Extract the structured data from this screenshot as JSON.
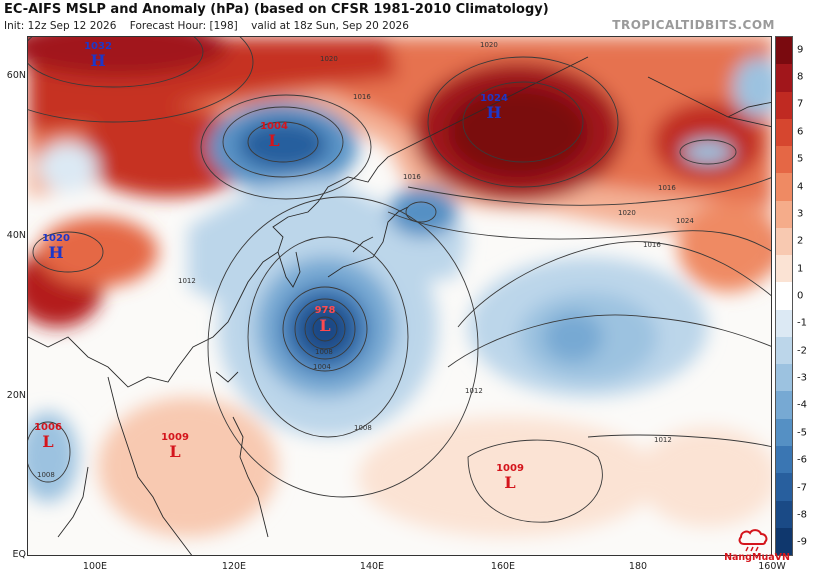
{
  "header": {
    "title": "EC-AIFS MSLP and Anomaly (hPa) (based on CFSR 1981-2010 Climatology)",
    "init": "Init: 12z Sep 12 2026",
    "forecast_hour": "Forecast Hour: [198]",
    "valid": "valid at 18z Sun, Sep 20 2026",
    "brand": "TROPICALTIDBITS.COM"
  },
  "axes": {
    "lat_labels": [
      "60N",
      "40N",
      "20N",
      "EQ"
    ],
    "lon_labels": [
      "100E",
      "120E",
      "140E",
      "160E",
      "180",
      "160W"
    ]
  },
  "colorbar": {
    "labels": [
      "9",
      "8",
      "7",
      "6",
      "5",
      "4",
      "3",
      "2",
      "1",
      "0",
      "-1",
      "-2",
      "-3",
      "-4",
      "-5",
      "-6",
      "-7",
      "-8",
      "-9"
    ],
    "colors": [
      "#7a0a0f",
      "#a1161b",
      "#c02a22",
      "#d6462f",
      "#e56745",
      "#ef8a63",
      "#f5ac8a",
      "#f8c9b1",
      "#fbe3d4",
      "#ffffff",
      "#dce9f4",
      "#bcd6ea",
      "#9cc2e0",
      "#77a9d3",
      "#5590c4",
      "#3a76b3",
      "#285f9e",
      "#1a4a86",
      "#0f376d"
    ]
  },
  "systems": [
    {
      "type": "H",
      "value": "1032",
      "color": "#1d37c9"
    },
    {
      "type": "H",
      "value": "1024",
      "color": "#1d37c9"
    },
    {
      "type": "H",
      "value": "1020",
      "color": "#1d37c9"
    },
    {
      "type": "L",
      "value": "1004",
      "color": "#d4151c"
    },
    {
      "type": "L",
      "value": "978",
      "color": "#d4151c"
    },
    {
      "type": "L",
      "value": "1006",
      "color": "#d4151c"
    },
    {
      "type": "L",
      "value": "1009",
      "color": "#d4151c"
    },
    {
      "type": "L",
      "value": "1009",
      "color": "#d4151c"
    }
  ],
  "isobar_labels": [
    "1020",
    "1020",
    "1016",
    "1016",
    "1016",
    "1020",
    "1016",
    "1024",
    "1012",
    "1012",
    "1008",
    "1004",
    "1008",
    "1008",
    "1012"
  ],
  "watermark": "NangMuaVN"
}
